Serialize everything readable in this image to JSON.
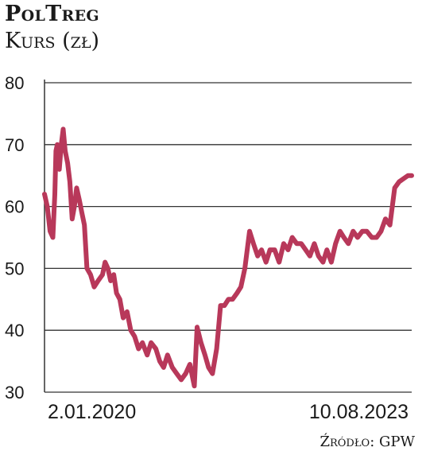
{
  "header": {
    "title": "PolTreg",
    "subtitle": "Kurs (zł)"
  },
  "source": "Źródło: GPW",
  "colors": {
    "line": "#b8385a",
    "grid": "#333333",
    "text": "#1a1a1a"
  },
  "chart_data": {
    "type": "line",
    "title": "PolTreg",
    "ylabel": "Kurs (zł)",
    "ylim": [
      30,
      80
    ],
    "yticks": [
      30,
      40,
      50,
      60,
      70,
      80
    ],
    "xlim": [
      "2020-01-02",
      "2023-08-10"
    ],
    "xtick_labels": [
      "2.01.2020",
      "10.08.2023"
    ],
    "grid": true,
    "series": [
      {
        "values": [
          [
            "2020-01-02",
            62
          ],
          [
            "2020-01-12",
            60
          ],
          [
            "2020-01-22",
            56
          ],
          [
            "2020-02-01",
            55
          ],
          [
            "2020-02-08",
            62
          ],
          [
            "2020-02-12",
            69
          ],
          [
            "2020-02-17",
            70
          ],
          [
            "2020-02-24",
            66
          ],
          [
            "2020-03-02",
            70
          ],
          [
            "2020-03-09",
            72.5
          ],
          [
            "2020-03-16",
            69
          ],
          [
            "2020-03-25",
            67
          ],
          [
            "2020-04-02",
            64
          ],
          [
            "2020-04-10",
            58
          ],
          [
            "2020-04-18",
            60
          ],
          [
            "2020-04-26",
            63
          ],
          [
            "2020-05-06",
            61
          ],
          [
            "2020-05-15",
            59
          ],
          [
            "2020-05-24",
            57
          ],
          [
            "2020-06-02",
            50
          ],
          [
            "2020-06-15",
            49
          ],
          [
            "2020-06-28",
            47
          ],
          [
            "2020-07-12",
            48
          ],
          [
            "2020-07-28",
            49
          ],
          [
            "2020-08-06",
            51
          ],
          [
            "2020-08-16",
            50
          ],
          [
            "2020-08-26",
            48
          ],
          [
            "2020-09-06",
            49
          ],
          [
            "2020-09-16",
            46
          ],
          [
            "2020-09-28",
            45
          ],
          [
            "2020-10-10",
            42
          ],
          [
            "2020-10-24",
            43
          ],
          [
            "2020-11-06",
            40
          ],
          [
            "2020-11-20",
            39
          ],
          [
            "2020-12-04",
            37
          ],
          [
            "2020-12-18",
            38
          ],
          [
            "2021-01-04",
            36
          ],
          [
            "2021-01-18",
            38
          ],
          [
            "2021-02-04",
            37
          ],
          [
            "2021-02-18",
            35
          ],
          [
            "2021-03-04",
            34
          ],
          [
            "2021-03-18",
            36
          ],
          [
            "2021-04-04",
            34
          ],
          [
            "2021-04-20",
            33
          ],
          [
            "2021-05-06",
            32
          ],
          [
            "2021-05-22",
            33
          ],
          [
            "2021-06-06",
            34.5
          ],
          [
            "2021-06-22",
            31
          ],
          [
            "2021-07-02",
            40.5
          ],
          [
            "2021-07-16",
            38
          ],
          [
            "2021-07-30",
            36
          ],
          [
            "2021-08-12",
            34
          ],
          [
            "2021-08-26",
            33
          ],
          [
            "2021-09-10",
            37
          ],
          [
            "2021-09-24",
            44
          ],
          [
            "2021-10-08",
            44
          ],
          [
            "2021-10-22",
            45
          ],
          [
            "2021-11-06",
            45
          ],
          [
            "2021-11-22",
            46
          ],
          [
            "2021-12-06",
            47
          ],
          [
            "2021-12-20",
            50
          ],
          [
            "2022-01-06",
            56
          ],
          [
            "2022-01-20",
            54
          ],
          [
            "2022-02-04",
            52
          ],
          [
            "2022-02-18",
            53
          ],
          [
            "2022-03-06",
            51
          ],
          [
            "2022-03-20",
            53
          ],
          [
            "2022-04-06",
            53
          ],
          [
            "2022-04-22",
            51
          ],
          [
            "2022-05-08",
            54
          ],
          [
            "2022-05-24",
            53
          ],
          [
            "2022-06-08",
            55
          ],
          [
            "2022-06-24",
            54
          ],
          [
            "2022-07-10",
            54
          ],
          [
            "2022-07-26",
            53
          ],
          [
            "2022-08-10",
            52
          ],
          [
            "2022-08-26",
            54
          ],
          [
            "2022-09-10",
            52
          ],
          [
            "2022-09-26",
            51
          ],
          [
            "2022-10-10",
            53
          ],
          [
            "2022-10-26",
            51
          ],
          [
            "2022-11-10",
            54
          ],
          [
            "2022-11-26",
            56
          ],
          [
            "2022-12-10",
            55
          ],
          [
            "2022-12-26",
            54
          ],
          [
            "2023-01-12",
            56
          ],
          [
            "2023-01-28",
            55
          ],
          [
            "2023-02-14",
            56
          ],
          [
            "2023-03-02",
            56
          ],
          [
            "2023-03-20",
            55
          ],
          [
            "2023-04-06",
            55
          ],
          [
            "2023-04-22",
            56
          ],
          [
            "2023-05-08",
            58
          ],
          [
            "2023-05-24",
            57
          ],
          [
            "2023-06-10",
            63
          ],
          [
            "2023-06-26",
            64
          ],
          [
            "2023-07-12",
            64.5
          ],
          [
            "2023-07-28",
            65
          ],
          [
            "2023-08-10",
            65
          ]
        ]
      }
    ]
  }
}
